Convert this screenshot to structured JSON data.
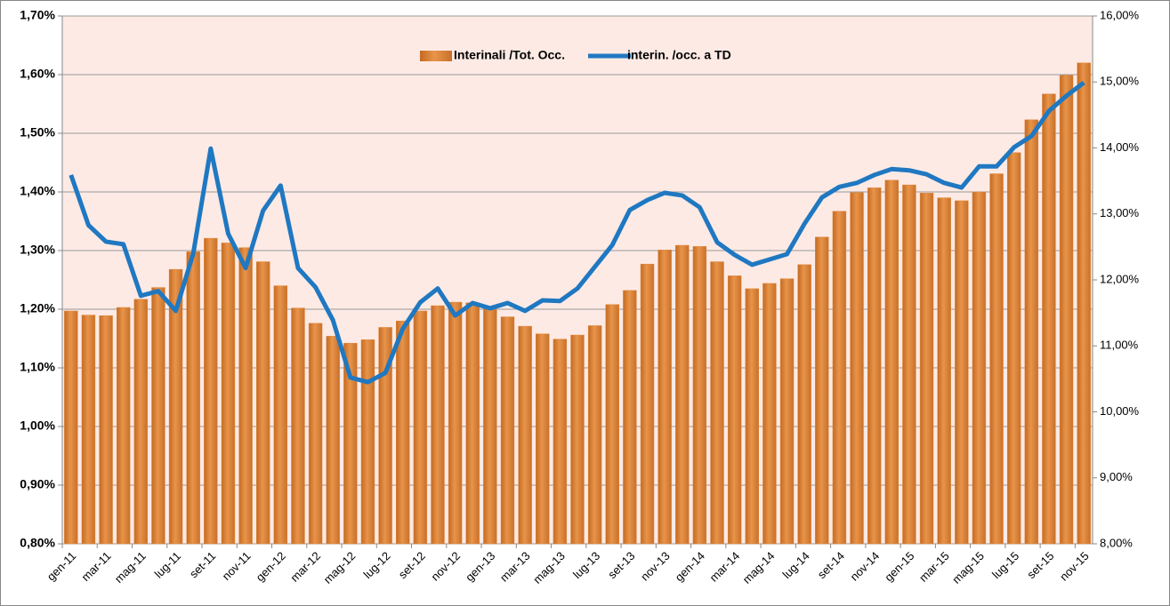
{
  "chart_data": {
    "type": "bar+line",
    "categories": [
      "gen-11",
      null,
      "mar-11",
      null,
      "mag-11",
      null,
      "lug-11",
      null,
      "set-11",
      null,
      "nov-11",
      null,
      "gen-12",
      null,
      "mar-12",
      null,
      "mag-12",
      null,
      "lug-12",
      null,
      "set-12",
      null,
      "nov-12",
      null,
      "gen-13",
      null,
      "mar-13",
      null,
      "mag-13",
      null,
      "lug-13",
      null,
      "set-13",
      null,
      "nov-13",
      null,
      "gen-14",
      null,
      "mar-14",
      null,
      "mag-14",
      null,
      "lug-14",
      null,
      "set-14",
      null,
      "nov-14",
      null,
      "gen-15",
      null,
      "mar-15",
      null,
      "mag-15",
      null,
      "lug-15",
      null,
      "set-15",
      null,
      "nov-15"
    ],
    "series": [
      {
        "name": "Interinali /Tot. Occ.",
        "type": "bar",
        "color": "#e0883a",
        "values": [
          1.197,
          1.19,
          1.189,
          1.203,
          1.217,
          1.237,
          1.268,
          1.298,
          1.321,
          1.313,
          1.305,
          1.281,
          1.24,
          1.202,
          1.176,
          1.154,
          1.142,
          1.148,
          1.169,
          1.18,
          1.197,
          1.206,
          1.212,
          1.211,
          1.2,
          1.187,
          1.171,
          1.158,
          1.149,
          1.156,
          1.172,
          1.208,
          1.232,
          1.277,
          1.301,
          1.309,
          1.307,
          1.281,
          1.257,
          1.235,
          1.244,
          1.252,
          1.276,
          1.323,
          1.367,
          1.399,
          1.407,
          1.42,
          1.412,
          1.398,
          1.39,
          1.385,
          1.4,
          1.431,
          1.467,
          1.523,
          1.567,
          1.599,
          1.62
        ]
      },
      {
        "name": "interin. /occ. a TD",
        "type": "line",
        "axis": "y2",
        "color": "#1f78c1",
        "values": [
          13.59,
          12.83,
          12.58,
          12.54,
          11.76,
          11.83,
          11.53,
          12.4,
          13.99,
          12.7,
          12.18,
          13.05,
          13.43,
          12.18,
          11.89,
          11.39,
          10.52,
          10.45,
          10.59,
          11.26,
          11.66,
          11.87,
          11.46,
          11.65,
          11.57,
          11.65,
          11.53,
          11.69,
          11.68,
          11.87,
          12.2,
          12.53,
          13.06,
          13.21,
          13.32,
          13.28,
          13.1,
          12.57,
          12.38,
          12.23,
          12.31,
          12.39,
          12.85,
          13.25,
          13.41,
          13.47,
          13.59,
          13.68,
          13.66,
          13.6,
          13.47,
          13.4,
          13.72,
          13.72,
          14.01,
          14.18,
          14.56,
          14.79,
          14.99
        ]
      }
    ],
    "ylim": [
      0.8,
      1.7
    ],
    "yticks": [
      {
        "value": 0.8,
        "label": "0,80%"
      },
      {
        "value": 0.9,
        "label": "0,90%"
      },
      {
        "value": 1.0,
        "label": "1,00%"
      },
      {
        "value": 1.1,
        "label": "1,10%"
      },
      {
        "value": 1.2,
        "label": "1,20%"
      },
      {
        "value": 1.3,
        "label": "1,30%"
      },
      {
        "value": 1.4,
        "label": "1,40%"
      },
      {
        "value": 1.5,
        "label": "1,50%"
      },
      {
        "value": 1.6,
        "label": "1,60%"
      },
      {
        "value": 1.7,
        "label": "1,70%"
      }
    ],
    "y2lim": [
      8,
      16
    ],
    "y2ticks": [
      {
        "value": 8,
        "label": "8,00%"
      },
      {
        "value": 9,
        "label": "9,00%"
      },
      {
        "value": 10,
        "label": "10,00%"
      },
      {
        "value": 11,
        "label": "11,00%"
      },
      {
        "value": 12,
        "label": "12,00%"
      },
      {
        "value": 13,
        "label": "13,00%"
      },
      {
        "value": 14,
        "label": "14,00%"
      },
      {
        "value": 15,
        "label": "15,00%"
      },
      {
        "value": 16,
        "label": "16,00%"
      }
    ],
    "grid": true,
    "legend": "top",
    "background": "#fdeae5"
  }
}
